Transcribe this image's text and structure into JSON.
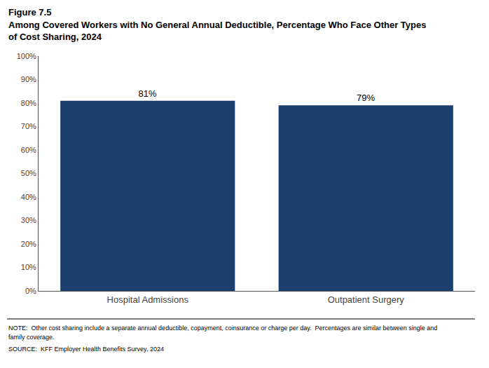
{
  "chart_data": {
    "type": "bar",
    "title": "Figure 7.5",
    "subtitle": [
      "Among Covered Workers with No General Annual Deductible, Percentage Who Face Other Types",
      "of Cost Sharing, 2024"
    ],
    "categories": [
      "Hospital Admissions",
      "Outpatient Surgery"
    ],
    "values": [
      81,
      79
    ],
    "value_labels": [
      "81%",
      "79%"
    ],
    "data_labels": true,
    "color": "#1B3F6E",
    "ylim": [
      0,
      100
    ],
    "yticks": [
      {
        "value": 0,
        "label": "0%"
      },
      {
        "value": 10,
        "label": "10%"
      },
      {
        "value": 20,
        "label": "20%"
      },
      {
        "value": 30,
        "label": "30%"
      },
      {
        "value": 40,
        "label": "40%"
      },
      {
        "value": 50,
        "label": "50%"
      },
      {
        "value": 60,
        "label": "60%"
      },
      {
        "value": 70,
        "label": "70%"
      },
      {
        "value": 80,
        "label": "80%"
      },
      {
        "value": 90,
        "label": "90%"
      },
      {
        "value": 100,
        "label": "100%"
      }
    ],
    "grid": false,
    "annotations": [
      "NOTE:  Other cost sharing include a separate annual deductible, copayment, coinsurance or charge per day.  Percentages are similar between single and",
      "family coverage.",
      "SOURCE:  KFF Employer Health Benefits Survey, 2024"
    ]
  }
}
